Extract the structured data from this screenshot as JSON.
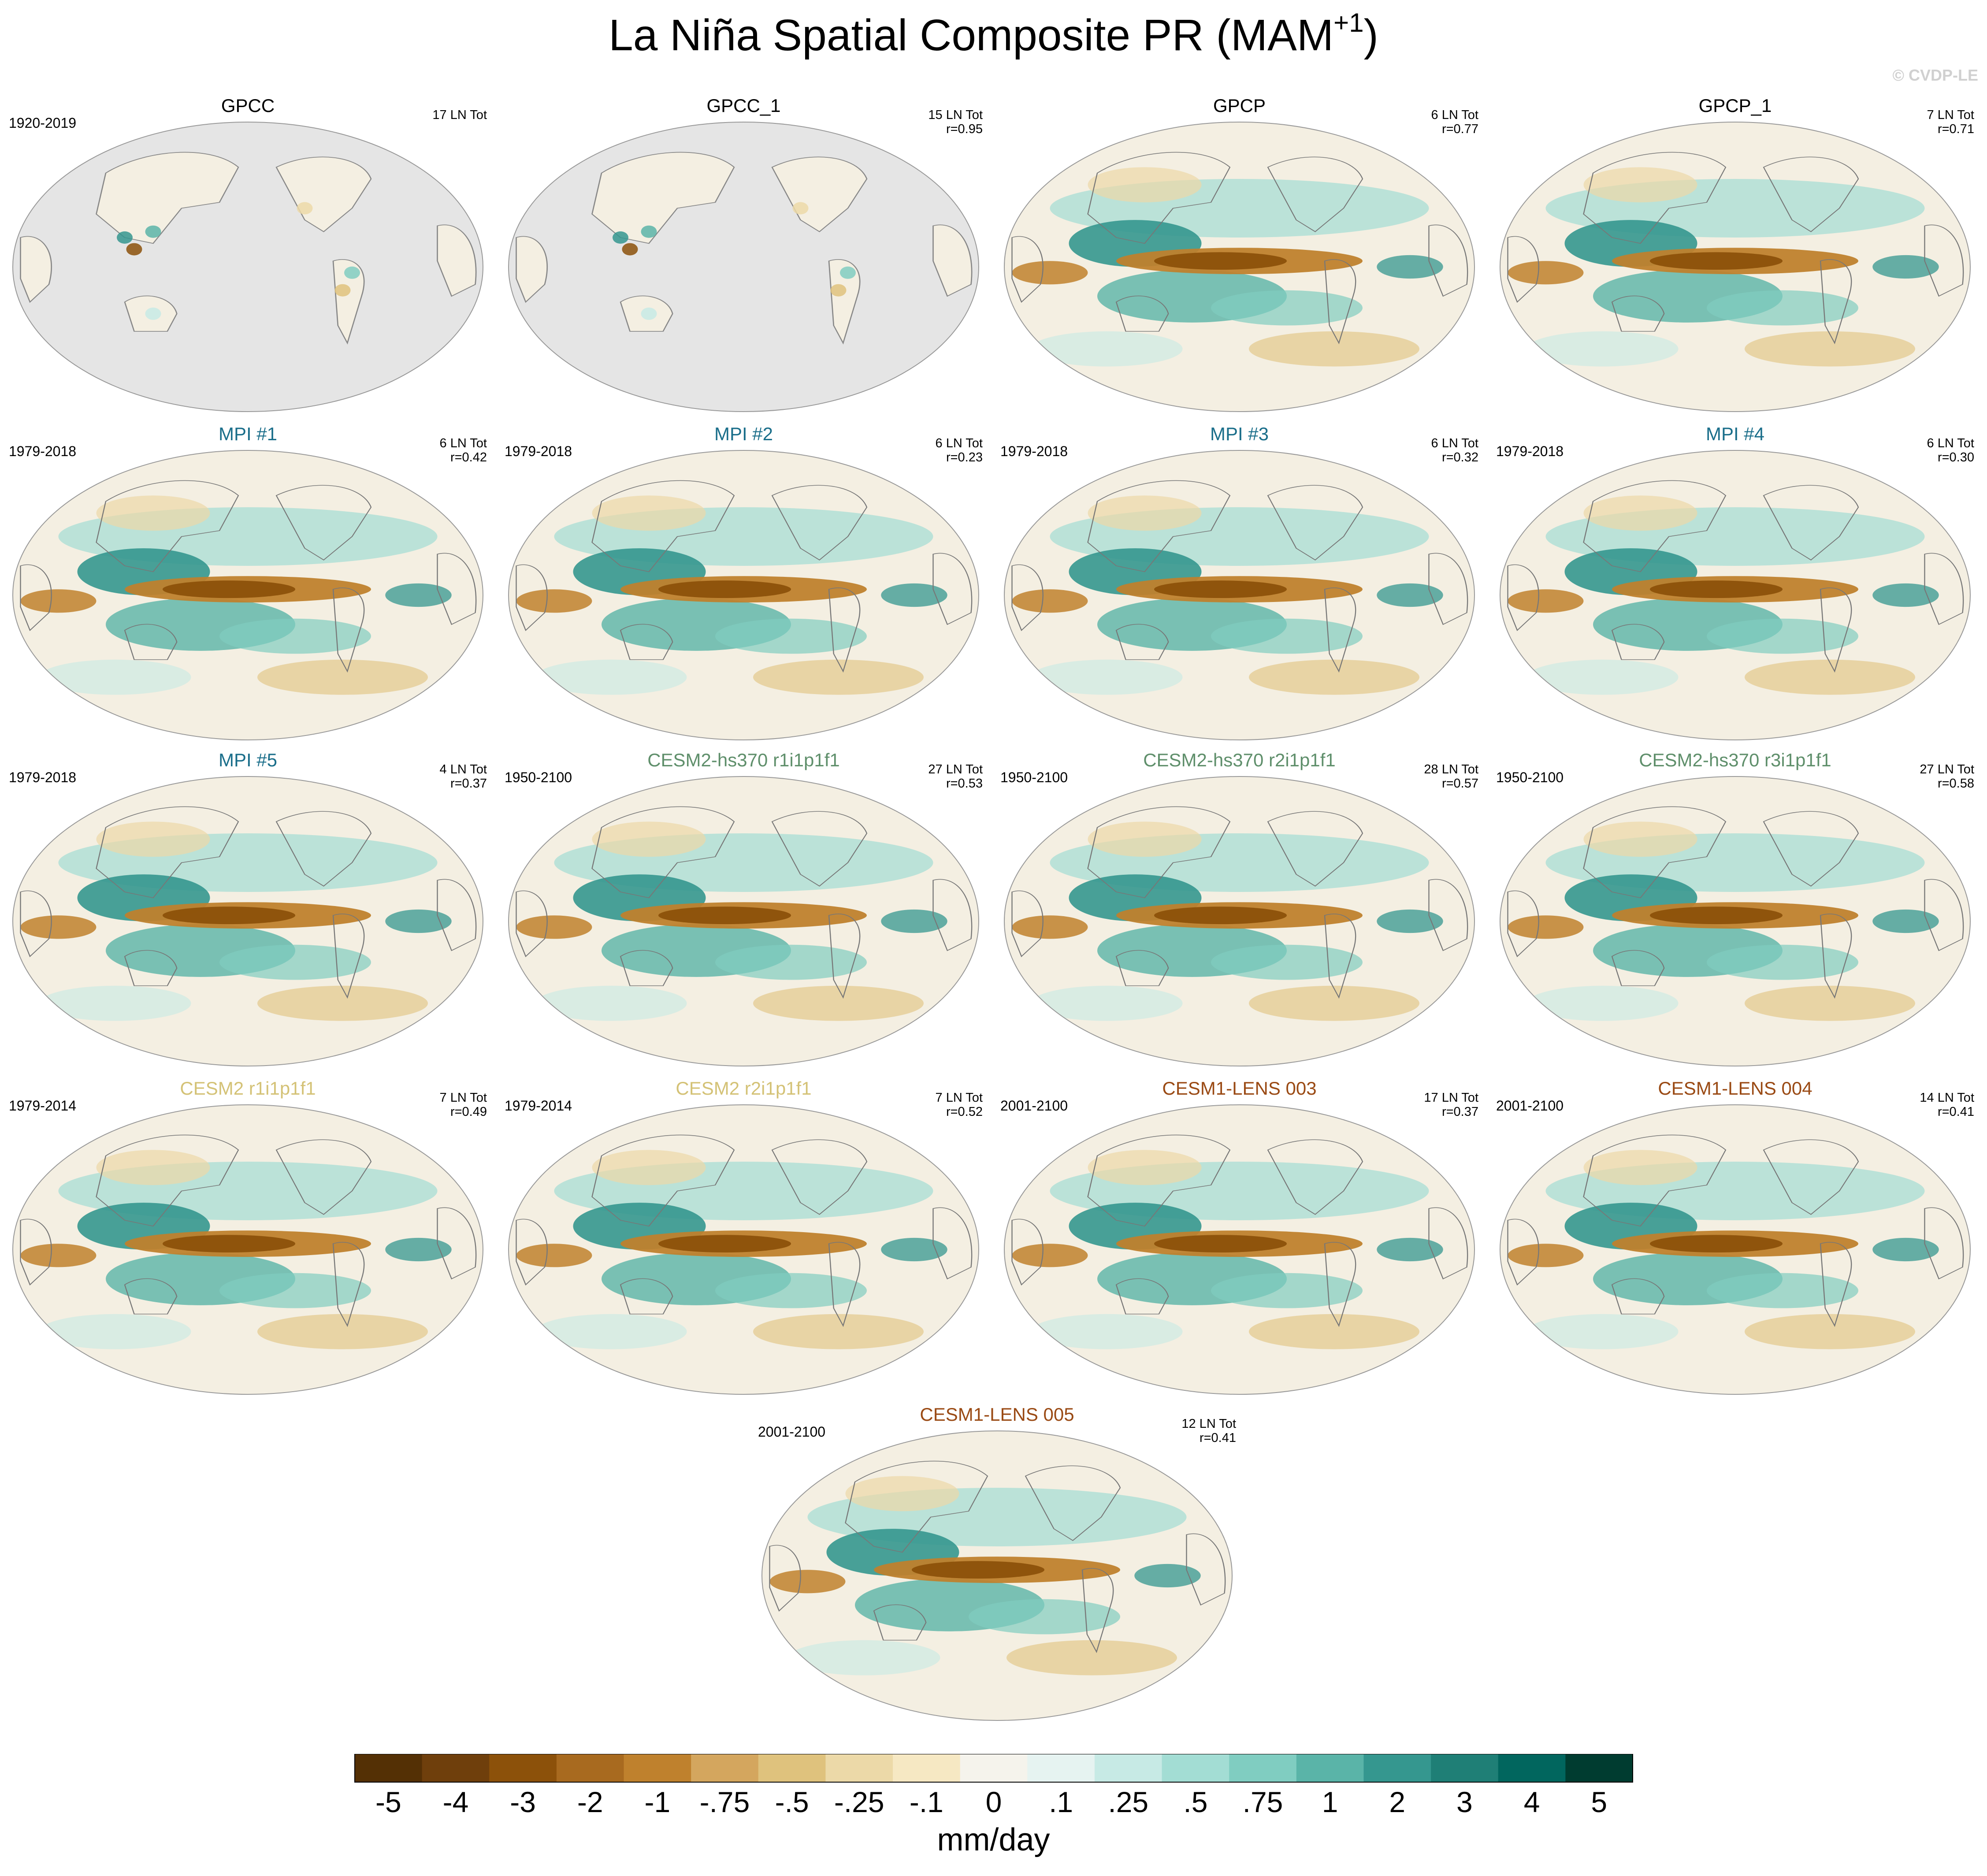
{
  "title": "La Niña Spatial Composite PR (MAM",
  "title_superscript": "+1",
  "title_close": ")",
  "credit": "© CVDP-LE",
  "panel_title_colors": {
    "obs": "#000000",
    "mpi": "#1a6e8a",
    "cesm2_hs370": "#5f8f6b",
    "cesm2": "#d4c276",
    "cesm1": "#9a4a14"
  },
  "panels": [
    {
      "title": "GPCC",
      "group": "obs",
      "years": "1920-2019",
      "count": "17 LN Tot",
      "r": "",
      "coverage": "land"
    },
    {
      "title": "GPCC_1",
      "group": "obs",
      "years": "",
      "count": "15 LN Tot",
      "r": "r=0.95",
      "coverage": "land"
    },
    {
      "title": "GPCP",
      "group": "obs",
      "years": "",
      "count": "6 LN Tot",
      "r": "r=0.77",
      "coverage": "global"
    },
    {
      "title": "GPCP_1",
      "group": "obs",
      "years": "",
      "count": "7 LN Tot",
      "r": "r=0.71",
      "coverage": "global"
    },
    {
      "title": "MPI #1",
      "group": "mpi",
      "years": "1979-2018",
      "count": "6 LN Tot",
      "r": "r=0.42",
      "coverage": "global"
    },
    {
      "title": "MPI #2",
      "group": "mpi",
      "years": "1979-2018",
      "count": "6 LN Tot",
      "r": "r=0.23",
      "coverage": "global"
    },
    {
      "title": "MPI #3",
      "group": "mpi",
      "years": "1979-2018",
      "count": "6 LN Tot",
      "r": "r=0.32",
      "coverage": "global"
    },
    {
      "title": "MPI #4",
      "group": "mpi",
      "years": "1979-2018",
      "count": "6 LN Tot",
      "r": "r=0.30",
      "coverage": "global"
    },
    {
      "title": "MPI #5",
      "group": "mpi",
      "years": "1979-2018",
      "count": "4 LN Tot",
      "r": "r=0.37",
      "coverage": "global"
    },
    {
      "title": "CESM2-hs370 r1i1p1f1",
      "group": "cesm2_hs370",
      "years": "1950-2100",
      "count": "27 LN Tot",
      "r": "r=0.53",
      "coverage": "global"
    },
    {
      "title": "CESM2-hs370 r2i1p1f1",
      "group": "cesm2_hs370",
      "years": "1950-2100",
      "count": "28 LN Tot",
      "r": "r=0.57",
      "coverage": "global"
    },
    {
      "title": "CESM2-hs370 r3i1p1f1",
      "group": "cesm2_hs370",
      "years": "1950-2100",
      "count": "27 LN Tot",
      "r": "r=0.58",
      "coverage": "global"
    },
    {
      "title": "CESM2 r1i1p1f1",
      "group": "cesm2",
      "years": "1979-2014",
      "count": "7 LN Tot",
      "r": "r=0.49",
      "coverage": "global"
    },
    {
      "title": "CESM2 r2i1p1f1",
      "group": "cesm2",
      "years": "1979-2014",
      "count": "7 LN Tot",
      "r": "r=0.52",
      "coverage": "global"
    },
    {
      "title": "CESM1-LENS 003",
      "group": "cesm1",
      "years": "2001-2100",
      "count": "17 LN Tot",
      "r": "r=0.37",
      "coverage": "global"
    },
    {
      "title": "CESM1-LENS 004",
      "group": "cesm1",
      "years": "2001-2100",
      "count": "14 LN Tot",
      "r": "r=0.41",
      "coverage": "global"
    },
    {
      "title": "CESM1-LENS 005",
      "group": "cesm1",
      "years": "2001-2100",
      "count": "12 LN Tot",
      "r": "r=0.41",
      "coverage": "global"
    }
  ],
  "colorbar": {
    "labels": [
      "-5",
      "-4",
      "-3",
      "-2",
      "-1",
      "-.75",
      "-.5",
      "-.25",
      "-.1",
      "0",
      ".1",
      ".25",
      ".5",
      ".75",
      "1",
      "2",
      "3",
      "4",
      "5"
    ],
    "colors": [
      "#543005",
      "#6f3f0c",
      "#8c510a",
      "#a86a1f",
      "#bf812d",
      "#d4a65e",
      "#dfc27d",
      "#ecd9a8",
      "#f6e8c3",
      "#f5f3ec",
      "#e6f3f1",
      "#c7eae5",
      "#a3ddd4",
      "#80cdc1",
      "#5ab4a8",
      "#35978f",
      "#1f7f76",
      "#01665e",
      "#003c30"
    ],
    "units": "mm/day"
  },
  "land_color": "#f4efe2",
  "ocean_missing_color": "#e5e5e5"
}
